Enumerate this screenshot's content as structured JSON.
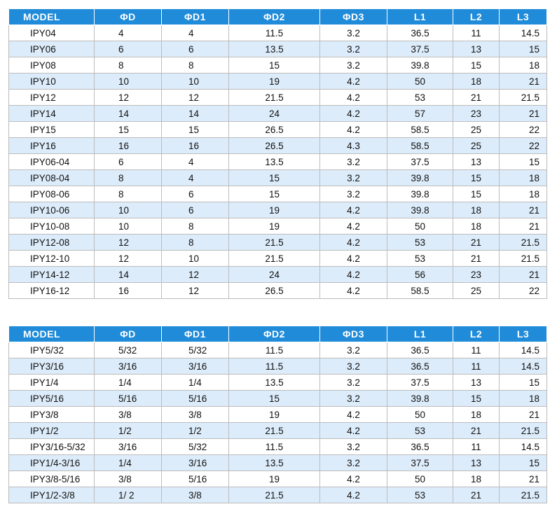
{
  "headers": [
    "MODEL",
    "ΦD",
    "ΦD1",
    "ΦD2",
    "ΦD3",
    "L1",
    "L2",
    "L3"
  ],
  "metric_table": {
    "rows": [
      [
        "IPY04",
        "4",
        "4",
        "11.5",
        "3.2",
        "36.5",
        "11",
        "14.5"
      ],
      [
        "IPY06",
        "6",
        "6",
        "13.5",
        "3.2",
        "37.5",
        "13",
        "15"
      ],
      [
        "IPY08",
        "8",
        "8",
        "15",
        "3.2",
        "39.8",
        "15",
        "18"
      ],
      [
        "IPY10",
        "10",
        "10",
        "19",
        "4.2",
        "50",
        "18",
        "21"
      ],
      [
        "IPY12",
        "12",
        "12",
        "21.5",
        "4.2",
        "53",
        "21",
        "21.5"
      ],
      [
        "IPY14",
        "14",
        "14",
        "24",
        "4.2",
        "57",
        "23",
        "21"
      ],
      [
        "IPY15",
        "15",
        "15",
        "26.5",
        "4.2",
        "58.5",
        "25",
        "22"
      ],
      [
        "IPY16",
        "16",
        "16",
        "26.5",
        "4.3",
        "58.5",
        "25",
        "22"
      ],
      [
        "IPY06-04",
        "6",
        "4",
        "13.5",
        "3.2",
        "37.5",
        "13",
        "15"
      ],
      [
        "IPY08-04",
        "8",
        "4",
        "15",
        "3.2",
        "39.8",
        "15",
        "18"
      ],
      [
        "IPY08-06",
        "8",
        "6",
        "15",
        "3.2",
        "39.8",
        "15",
        "18"
      ],
      [
        "IPY10-06",
        "10",
        "6",
        "19",
        "4.2",
        "39.8",
        "18",
        "21"
      ],
      [
        "IPY10-08",
        "10",
        "8",
        "19",
        "4.2",
        "50",
        "18",
        "21"
      ],
      [
        "IPY12-08",
        "12",
        "8",
        "21.5",
        "4.2",
        "53",
        "21",
        "21.5"
      ],
      [
        "IPY12-10",
        "12",
        "10",
        "21.5",
        "4.2",
        "53",
        "21",
        "21.5"
      ],
      [
        "IPY14-12",
        "14",
        "12",
        "24",
        "4.2",
        "56",
        "23",
        "21"
      ],
      [
        "IPY16-12",
        "16",
        "12",
        "26.5",
        "4.2",
        "58.5",
        "25",
        "22"
      ]
    ]
  },
  "imperial_table": {
    "rows": [
      [
        "IPY5/32",
        "5/32",
        "5/32",
        "11.5",
        "3.2",
        "36.5",
        "11",
        "14.5"
      ],
      [
        "IPY3/16",
        "3/16",
        "3/16",
        "11.5",
        "3.2",
        "36.5",
        "11",
        "14.5"
      ],
      [
        "IPY1/4",
        "1/4",
        "1/4",
        "13.5",
        "3.2",
        "37.5",
        "13",
        "15"
      ],
      [
        "IPY5/16",
        "5/16",
        "5/16",
        "15",
        "3.2",
        "39.8",
        "15",
        "18"
      ],
      [
        "IPY3/8",
        "3/8",
        "3/8",
        "19",
        "4.2",
        "50",
        "18",
        "21"
      ],
      [
        "IPY1/2",
        "1/2",
        "1/2",
        "21.5",
        "4.2",
        "53",
        "21",
        "21.5"
      ],
      [
        "IPY3/16-5/32",
        "3/16",
        "5/32",
        "11.5",
        "3.2",
        "36.5",
        "11",
        "14.5"
      ],
      [
        "IPY1/4-3/16",
        "1/4",
        "3/16",
        "13.5",
        "3.2",
        "37.5",
        "13",
        "15"
      ],
      [
        "IPY3/8-5/16",
        "3/8",
        "5/16",
        "19",
        "4.2",
        "50",
        "18",
        "21"
      ],
      [
        "IPY1/2-3/8",
        "1/ 2",
        "3/8",
        "21.5",
        "4.2",
        "53",
        "21",
        "21.5"
      ]
    ]
  },
  "colors": {
    "header_bg": "#1f8bd9",
    "header_text": "#ffffff",
    "alt_row_bg": "#ddecfa",
    "row_bg": "#ffffff",
    "grid_line": "#bcbcbc"
  }
}
